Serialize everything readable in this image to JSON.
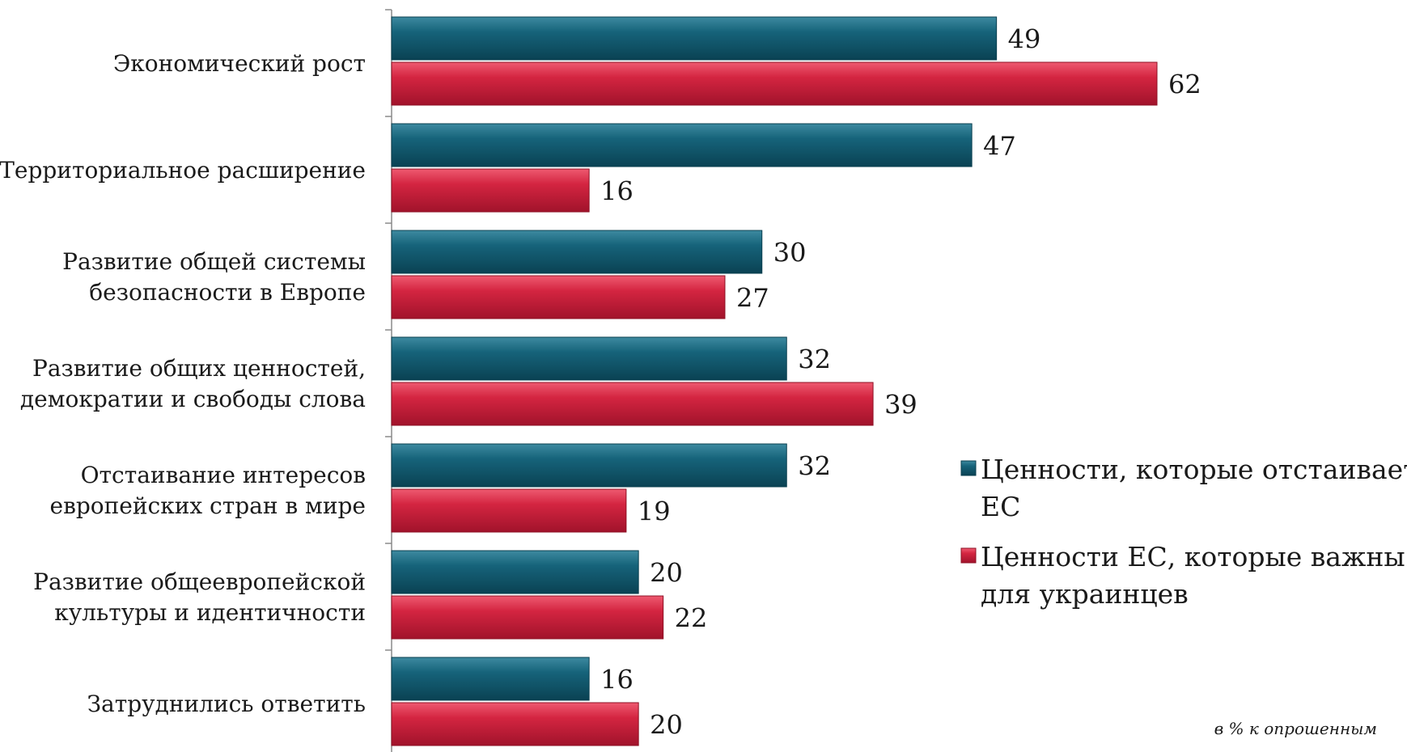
{
  "chart_data": {
    "type": "bar",
    "orientation": "horizontal",
    "categories": [
      [
        "Экономический рост"
      ],
      [
        "Территориальное расширение"
      ],
      [
        "Развитие общей системы",
        "безопасности в Европе"
      ],
      [
        "Развитие общих ценностей,",
        "демократии и свободы слова"
      ],
      [
        "Отстаивание интересов",
        "европейских стран в мире"
      ],
      [
        "Развитие общеевропейской",
        "культуры и идентичности"
      ],
      [
        "Затруднились ответить"
      ]
    ],
    "series": [
      {
        "name": "Ценности, которые отстаивает ЕС",
        "name_lines": [
          "Ценности, которые отстаивает",
          "ЕС"
        ],
        "color": "#0f5a6e",
        "values": [
          49,
          47,
          30,
          32,
          32,
          20,
          16
        ]
      },
      {
        "name": "Ценности ЕС, которые важны для украинцев",
        "name_lines": [
          "Ценности ЕС, которые важны",
          "для украинцев"
        ],
        "color": "#d01f3a",
        "values": [
          62,
          16,
          27,
          39,
          19,
          22,
          20
        ]
      }
    ],
    "xlim": [
      0,
      70
    ],
    "legend_position": "right",
    "note": "в % к опрошенным"
  }
}
